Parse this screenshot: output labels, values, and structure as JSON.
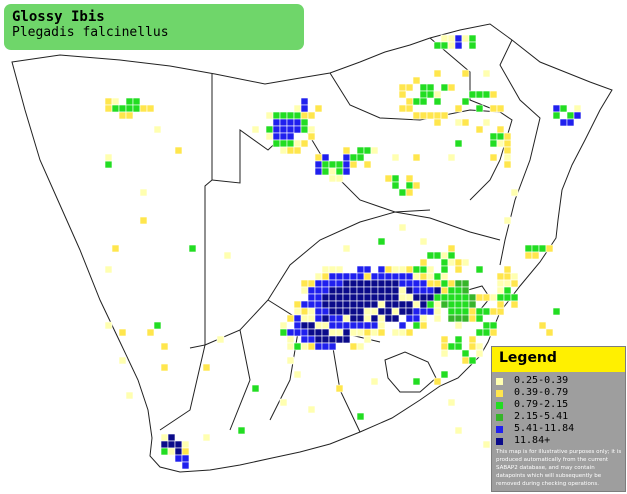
{
  "title": {
    "common_name": "Glossy Ibis",
    "scientific_name": "Plegadis falcinellus"
  },
  "legend": {
    "title": "Legend",
    "items": [
      {
        "label": "0.25-0.39",
        "color": "#ffffb0"
      },
      {
        "label": "0.39-0.79",
        "color": "#ffe64d"
      },
      {
        "label": "0.79-2.15",
        "color": "#22dd22"
      },
      {
        "label": "2.15-5.41",
        "color": "#36b52a"
      },
      {
        "label": "5.41-11.84",
        "color": "#2020ee"
      },
      {
        "label": "11.84+",
        "color": "#0b0b8a"
      }
    ],
    "disclaimer": "This map is for illustrative purposes only; it is produced automatically from the current SABAP2 database, and may contain datapoints which will subsequently be removed during checking operations."
  },
  "map": {
    "colors": {
      "fill": "#ffffff",
      "border": "#1a1a1a",
      "grid": "#ffffff"
    }
  }
}
